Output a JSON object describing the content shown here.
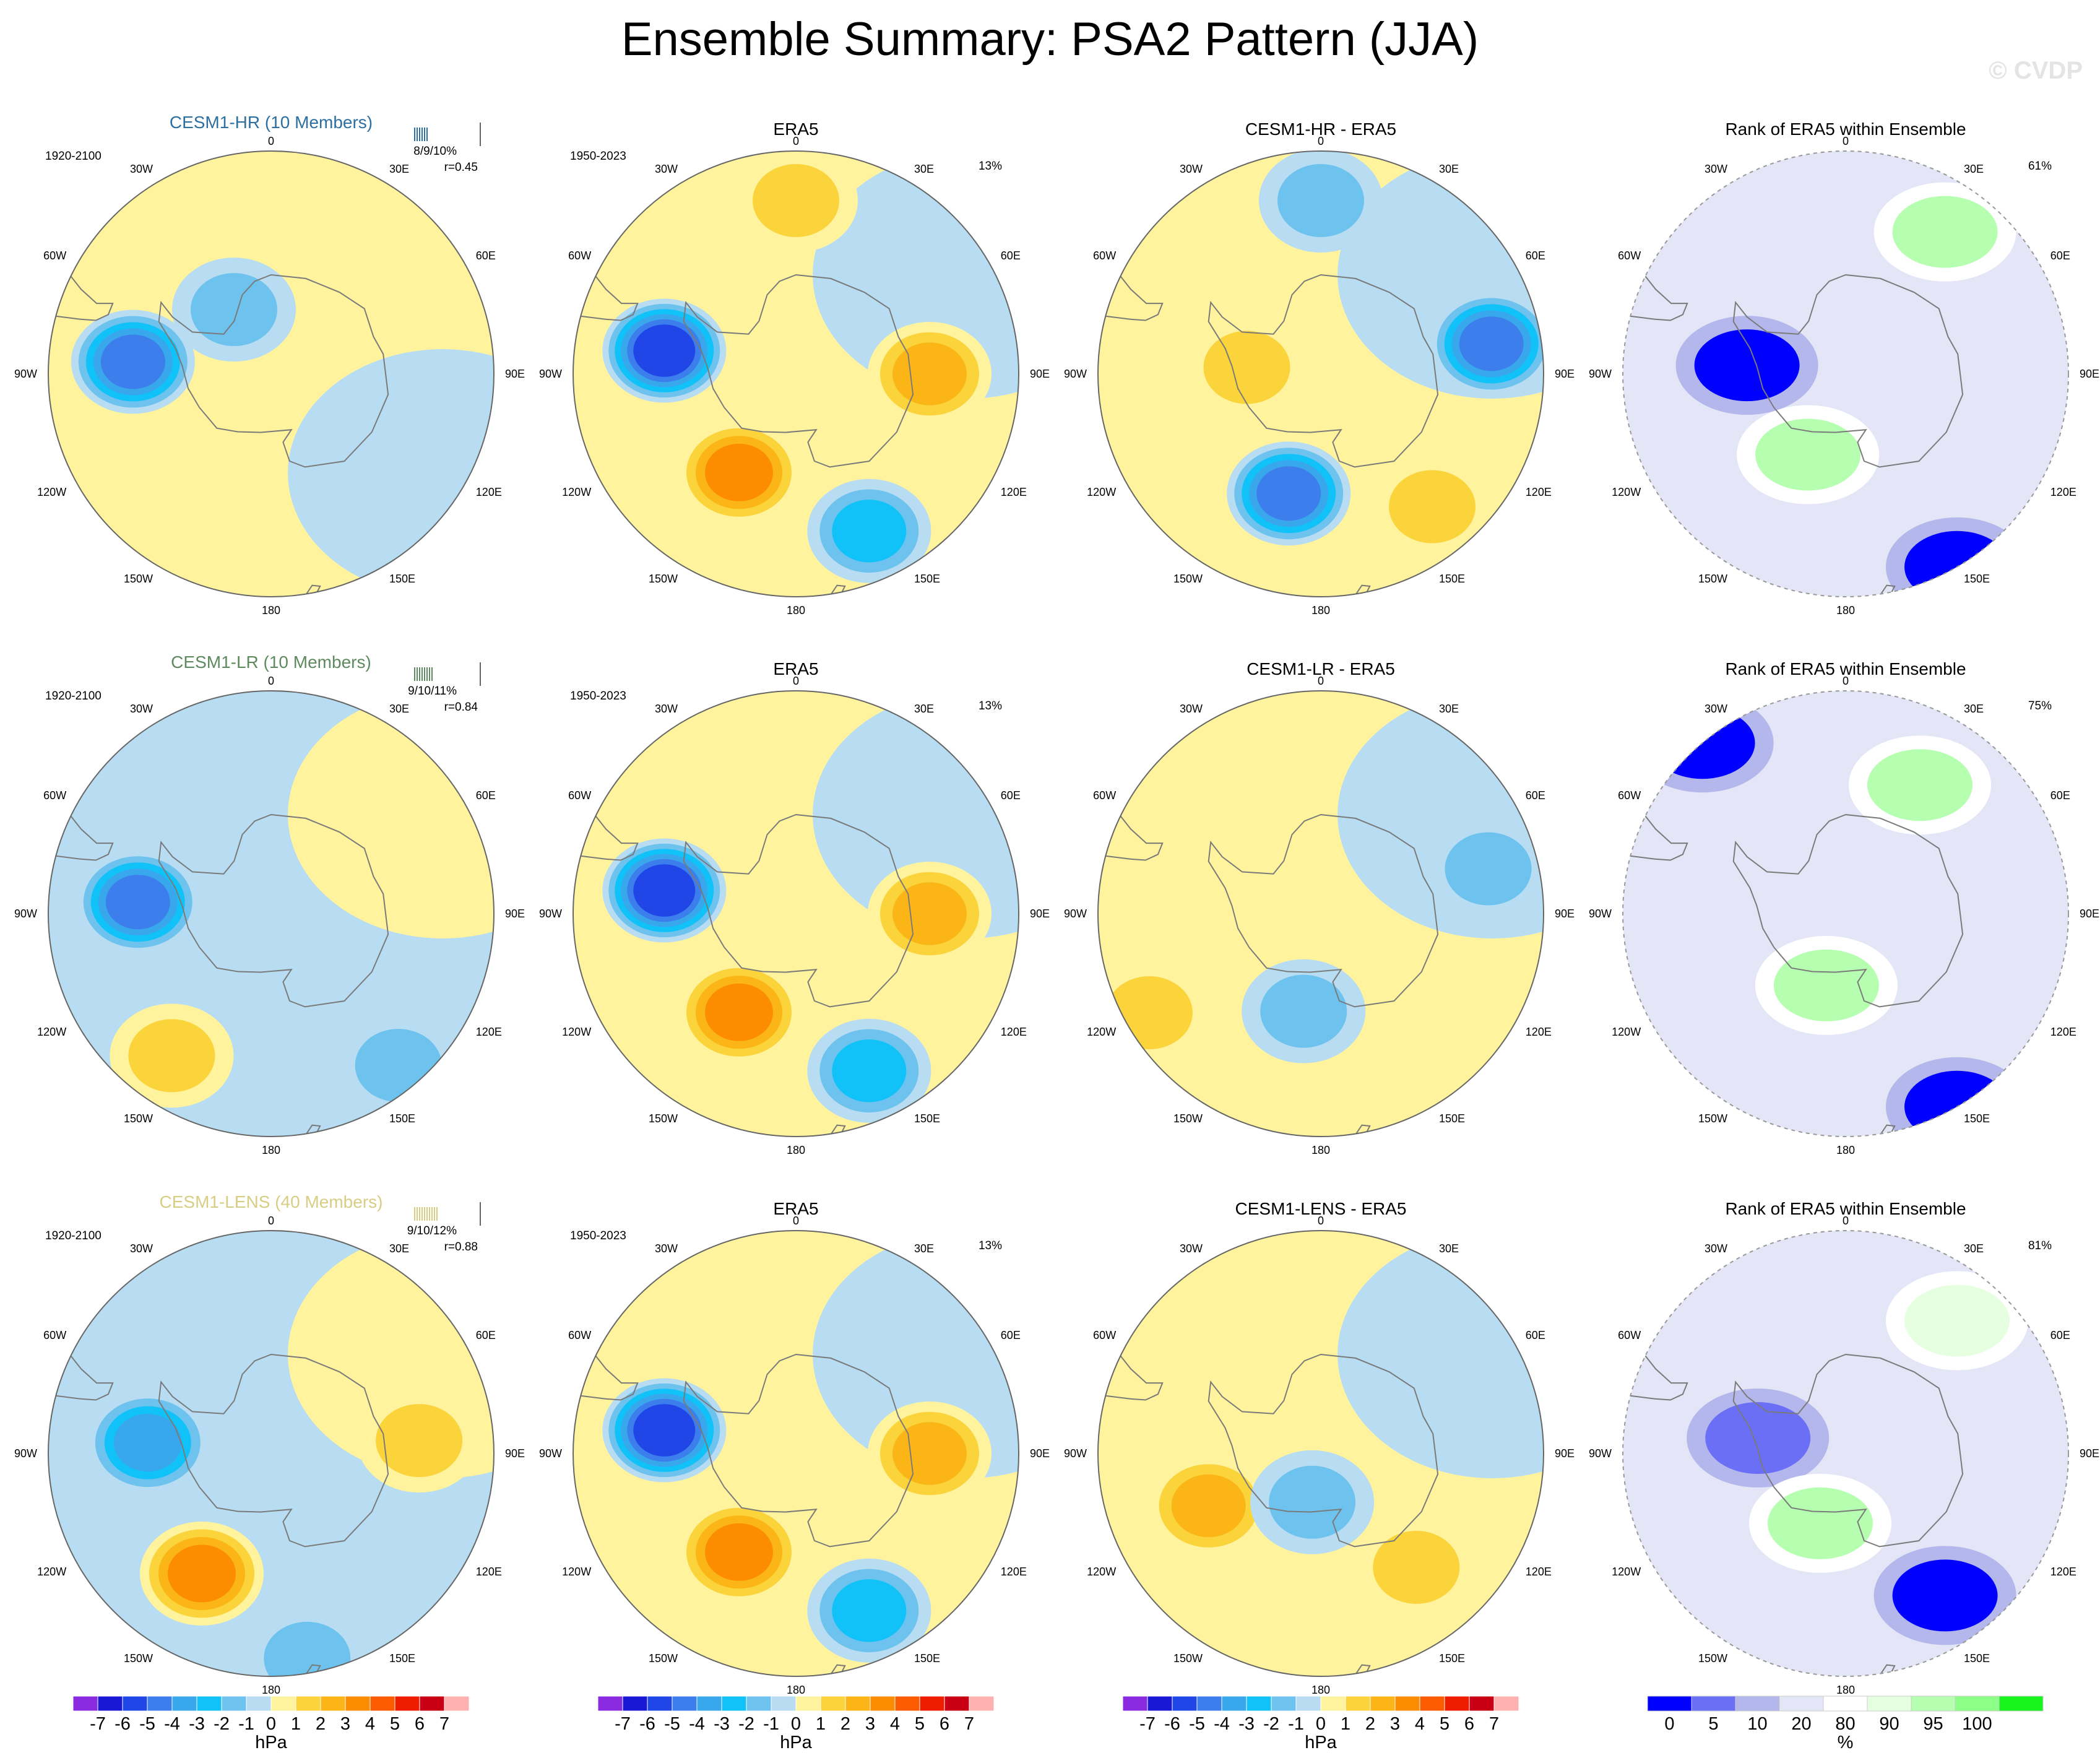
{
  "title": "Ensemble Summary: PSA2 Pattern (JJA)",
  "watermark": "© CVDP",
  "lon_labels": [
    "0",
    "30E",
    "60E",
    "90E",
    "120E",
    "150E",
    "180",
    "150W",
    "120W",
    "90W",
    "60W",
    "30W"
  ],
  "colors": {
    "hpa": [
      "#8a2be2",
      "#1818d6",
      "#2146e8",
      "#3c7eec",
      "#38a7ec",
      "#10c2f7",
      "#6dc3ee",
      "#b8ddf2",
      "#fff39e",
      "#fbd33a",
      "#fbb516",
      "#fc8d00",
      "#fd5b00",
      "#ee1d00",
      "#c90014",
      "#ffb0b0"
    ],
    "rank": [
      "#0000ff",
      "#6a6ff6",
      "#b4b7ec",
      "#e4e6f8",
      "#ffffff",
      "#e6ffe0",
      "#b6ffb0",
      "#8dff86",
      "#19f51a"
    ],
    "model_label": [
      "#2c6fa0",
      "#5f8a5f",
      "#d8cd85"
    ]
  },
  "colorbars": {
    "hpa_labels": [
      "-7",
      "-6",
      "-5",
      "-4",
      "-3",
      "-2",
      "-1",
      "0",
      "1",
      "2",
      "3",
      "4",
      "5",
      "6",
      "7"
    ],
    "hpa_unit": "hPa",
    "rank_labels": [
      "0",
      "5",
      "10",
      "20",
      "80",
      "90",
      "95",
      "100"
    ],
    "rank_unit": "%"
  },
  "rows": [
    {
      "model": "CESM1-HR (10 Members)",
      "model_period": "1920-2100",
      "model_stats": "8/9/10%",
      "model_r": "r=0.45",
      "obs_title": "ERA5",
      "obs_period": "1950-2023",
      "obs_pct": "13%",
      "diff_title": "CESM1-HR - ERA5",
      "rank_title": "Rank of ERA5 within Ensemble",
      "rank_pct": "61%"
    },
    {
      "model": "CESM1-LR (10 Members)",
      "model_period": "1920-2100",
      "model_stats": "9/10/11%",
      "model_r": "r=0.84",
      "obs_title": "ERA5",
      "obs_period": "1950-2023",
      "obs_pct": "13%",
      "diff_title": "CESM1-LR - ERA5",
      "rank_title": "Rank of ERA5 within Ensemble",
      "rank_pct": "75%"
    },
    {
      "model": "CESM1-LENS (40 Members)",
      "model_period": "1920-2100",
      "model_stats": "9/10/12%",
      "model_r": "r=0.88",
      "obs_title": "ERA5",
      "obs_period": "1950-2023",
      "obs_pct": "13%",
      "diff_title": "CESM1-LENS - ERA5",
      "rank_title": "Rank of ERA5 within Ensemble",
      "rank_pct": "81%"
    }
  ],
  "chart_data": {
    "type": "heatmap",
    "projection": "south polar stereographic",
    "variable": "PSA2 pattern sea level pressure regression",
    "units": "hPa",
    "contour_levels": [
      -7,
      -6,
      -5,
      -4,
      -3,
      -2,
      -1,
      0,
      1,
      2,
      3,
      4,
      5,
      6,
      7
    ],
    "rank_levels": [
      0,
      5,
      10,
      20,
      80,
      90,
      95,
      100
    ],
    "rank_units": "%",
    "panels": [
      {
        "row": 0,
        "col": 0,
        "title": "CESM1-HR (10 Members)",
        "features": [
          {
            "lon": -85,
            "lat": -62,
            "value": -4.5
          },
          {
            "lon": -30,
            "lat": -75,
            "value": -1.5
          }
        ]
      },
      {
        "row": 0,
        "col": 1,
        "title": "ERA5",
        "features": [
          {
            "lon": -80,
            "lat": -63,
            "value": -5.5
          },
          {
            "lon": -150,
            "lat": -67,
            "value": 3.5
          },
          {
            "lon": 90,
            "lat": -63,
            "value": 2.5
          },
          {
            "lon": 155,
            "lat": -55,
            "value": -2.5
          },
          {
            "lon": 0,
            "lat": -55,
            "value": 1.5
          }
        ]
      },
      {
        "row": 0,
        "col": 2,
        "title": "CESM1-HR - ERA5",
        "features": [
          {
            "lon": -165,
            "lat": -65,
            "value": -4.5
          },
          {
            "lon": 80,
            "lat": -55,
            "value": -4.5
          },
          {
            "lon": -85,
            "lat": -75,
            "value": 1.5
          },
          {
            "lon": 140,
            "lat": -55,
            "value": 1.5
          },
          {
            "lon": 0,
            "lat": -55,
            "value": -1.5
          }
        ]
      },
      {
        "row": 0,
        "col": 3,
        "title": "Rank of ERA5 within Ensemble",
        "features": [
          {
            "lon": -85,
            "lat": -70,
            "value": 2
          },
          {
            "lon": 150,
            "lat": -45,
            "value": 2
          },
          {
            "lon": 35,
            "lat": -55,
            "value": 97
          },
          {
            "lon": -155,
            "lat": -72,
            "value": 97
          }
        ]
      },
      {
        "row": 1,
        "col": 0,
        "title": "CESM1-LR (10 Members)",
        "features": [
          {
            "lon": -85,
            "lat": -63,
            "value": -4.5
          },
          {
            "lon": -145,
            "lat": -55,
            "value": 1.5
          },
          {
            "lon": 140,
            "lat": -50,
            "value": -1.5
          }
        ]
      },
      {
        "row": 1,
        "col": 1,
        "title": "ERA5",
        "features": [
          {
            "lon": -80,
            "lat": -63,
            "value": -5.5
          },
          {
            "lon": -150,
            "lat": -67,
            "value": 3.5
          },
          {
            "lon": 90,
            "lat": -63,
            "value": 2.5
          },
          {
            "lon": 155,
            "lat": -55,
            "value": -2.5
          }
        ]
      },
      {
        "row": 1,
        "col": 2,
        "title": "CESM1-LR - ERA5",
        "features": [
          {
            "lon": -170,
            "lat": -70,
            "value": -1.5
          },
          {
            "lon": 75,
            "lat": -55,
            "value": -1.5
          },
          {
            "lon": -120,
            "lat": -50,
            "value": 1.5
          }
        ]
      },
      {
        "row": 1,
        "col": 3,
        "title": "Rank of ERA5 within Ensemble",
        "features": [
          {
            "lon": -40,
            "lat": -45,
            "value": 2
          },
          {
            "lon": 150,
            "lat": -45,
            "value": 2
          },
          {
            "lon": 30,
            "lat": -60,
            "value": 97
          },
          {
            "lon": -165,
            "lat": -75,
            "value": 97
          }
        ]
      },
      {
        "row": 2,
        "col": 0,
        "title": "CESM1-LENS (40 Members)",
        "features": [
          {
            "lon": -85,
            "lat": -65,
            "value": -3.5
          },
          {
            "lon": -150,
            "lat": -62,
            "value": 3.5
          },
          {
            "lon": 85,
            "lat": -60,
            "value": 1.5
          },
          {
            "lon": 170,
            "lat": -48,
            "value": -1.5
          }
        ]
      },
      {
        "row": 2,
        "col": 1,
        "title": "ERA5",
        "features": [
          {
            "lon": -80,
            "lat": -63,
            "value": -5.5
          },
          {
            "lon": -150,
            "lat": -67,
            "value": 3.5
          },
          {
            "lon": 90,
            "lat": -63,
            "value": 2.5
          },
          {
            "lon": 155,
            "lat": -55,
            "value": -2.5
          }
        ]
      },
      {
        "row": 2,
        "col": 2,
        "title": "CESM1-LENS - ERA5",
        "features": [
          {
            "lon": -115,
            "lat": -65,
            "value": 2.5
          },
          {
            "lon": -170,
            "lat": -80,
            "value": -1.5
          },
          {
            "lon": 140,
            "lat": -60,
            "value": 1.5
          }
        ]
      },
      {
        "row": 2,
        "col": 3,
        "title": "Rank of ERA5 within Ensemble",
        "features": [
          {
            "lon": 145,
            "lat": -55,
            "value": 2
          },
          {
            "lon": -80,
            "lat": -72,
            "value": 8
          },
          {
            "lon": -160,
            "lat": -75,
            "value": 97
          },
          {
            "lon": 40,
            "lat": -55,
            "value": 92
          }
        ]
      }
    ]
  }
}
